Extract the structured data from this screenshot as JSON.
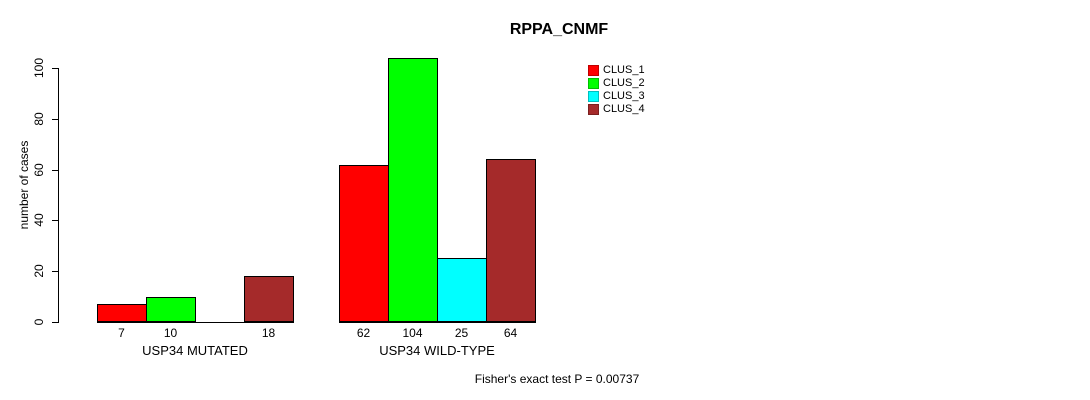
{
  "chart_data": {
    "type": "bar",
    "title": "RPPA_CNMF",
    "ylabel": "number of cases",
    "xlabel": "",
    "ylim": [
      0,
      100
    ],
    "yticks": [
      0,
      20,
      40,
      60,
      80,
      100
    ],
    "grid": false,
    "legend_position": "top-right",
    "categories": [
      "USP34 MUTATED",
      "USP34 WILD-TYPE"
    ],
    "series": [
      {
        "name": "CLUS_1",
        "color": "#FF0000",
        "values": [
          7,
          62
        ]
      },
      {
        "name": "CLUS_2",
        "color": "#00FF00",
        "values": [
          10,
          104
        ]
      },
      {
        "name": "CLUS_3",
        "color": "#00FFFF",
        "values": [
          0,
          25
        ]
      },
      {
        "name": "CLUS_4",
        "color": "#A52A2A",
        "values": [
          18,
          64
        ]
      }
    ],
    "bar_value_labels": [
      [
        "7",
        "10",
        "",
        "18"
      ],
      [
        "62",
        "104",
        "25",
        "64"
      ]
    ],
    "annotation": "Fisher's exact test P = 0.00737"
  }
}
